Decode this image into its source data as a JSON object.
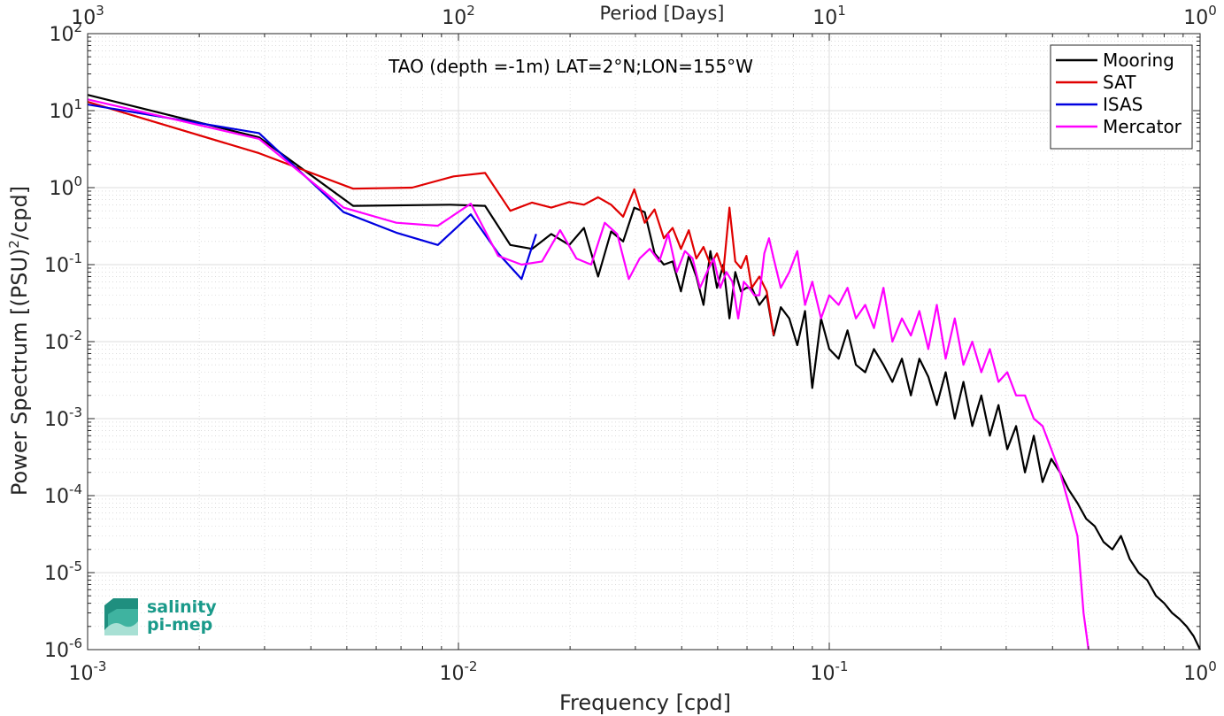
{
  "chart_data": {
    "type": "line",
    "title": "TAO (depth =-1m) LAT=2°N;LON=155°W",
    "xlabel": "Frequency [cpd]",
    "ylabel": "Power Spectrum [(PSU)",
    "ylabel_sup": "2",
    "ylabel_tail": "/cpd]",
    "top_xlabel": "Period [Days]",
    "x_scale": "log",
    "y_scale": "log",
    "xlim": [
      0.001,
      1
    ],
    "ylim": [
      1e-06,
      100
    ],
    "grid": true,
    "legend_position": "top-right",
    "x_ticks": [
      {
        "base": "10",
        "exp": "-3",
        "value": 0.001
      },
      {
        "base": "10",
        "exp": "-2",
        "value": 0.01
      },
      {
        "base": "10",
        "exp": "-1",
        "value": 0.1
      },
      {
        "base": "10",
        "exp": "0",
        "value": 1
      }
    ],
    "top_ticks": [
      {
        "base": "10",
        "exp": "3",
        "value": 0.001
      },
      {
        "base": "10",
        "exp": "2",
        "value": 0.01
      },
      {
        "base": "10",
        "exp": "1",
        "value": 0.1
      },
      {
        "base": "10",
        "exp": "0",
        "value": 1
      }
    ],
    "y_ticks": [
      {
        "base": "10",
        "exp": "2",
        "value": 100
      },
      {
        "base": "10",
        "exp": "1",
        "value": 10
      },
      {
        "base": "10",
        "exp": "0",
        "value": 1
      },
      {
        "base": "10",
        "exp": "-1",
        "value": 0.1
      },
      {
        "base": "10",
        "exp": "-2",
        "value": 0.01
      },
      {
        "base": "10",
        "exp": "-3",
        "value": 0.001
      },
      {
        "base": "10",
        "exp": "-4",
        "value": 0.0001
      },
      {
        "base": "10",
        "exp": "-5",
        "value": 1e-05
      },
      {
        "base": "10",
        "exp": "-6",
        "value": 1e-06
      }
    ],
    "series": [
      {
        "name": "Mooring",
        "color": "#000000",
        "x": [
          0.001,
          0.0029,
          0.0052,
          0.0095,
          0.0118,
          0.0138,
          0.0158,
          0.0178,
          0.0199,
          0.0218,
          0.0238,
          0.0258,
          0.0278,
          0.0298,
          0.0318,
          0.0338,
          0.0358,
          0.0378,
          0.0398,
          0.0418,
          0.0438,
          0.0458,
          0.0478,
          0.0498,
          0.0518,
          0.0538,
          0.0558,
          0.0578,
          0.0598,
          0.0618,
          0.0648,
          0.0678,
          0.0708,
          0.074,
          0.078,
          0.082,
          0.086,
          0.09,
          0.095,
          0.1,
          0.106,
          0.112,
          0.118,
          0.125,
          0.132,
          0.14,
          0.148,
          0.157,
          0.166,
          0.175,
          0.185,
          0.195,
          0.206,
          0.218,
          0.23,
          0.243,
          0.257,
          0.271,
          0.286,
          0.302,
          0.319,
          0.337,
          0.356,
          0.376,
          0.397,
          0.419,
          0.442,
          0.467,
          0.493,
          0.52,
          0.549,
          0.58,
          0.612,
          0.646,
          0.682,
          0.72,
          0.76,
          0.8,
          0.84,
          0.88,
          0.92,
          0.96,
          1.0
        ],
        "y": [
          16,
          4.5,
          0.58,
          0.6,
          0.58,
          0.18,
          0.16,
          0.25,
          0.18,
          0.3,
          0.07,
          0.27,
          0.2,
          0.55,
          0.48,
          0.14,
          0.1,
          0.11,
          0.045,
          0.13,
          0.07,
          0.03,
          0.15,
          0.05,
          0.1,
          0.02,
          0.08,
          0.045,
          0.05,
          0.05,
          0.03,
          0.04,
          0.012,
          0.028,
          0.02,
          0.009,
          0.025,
          0.0025,
          0.02,
          0.008,
          0.006,
          0.014,
          0.005,
          0.004,
          0.008,
          0.005,
          0.003,
          0.006,
          0.002,
          0.006,
          0.0035,
          0.0015,
          0.004,
          0.001,
          0.003,
          0.0008,
          0.002,
          0.0006,
          0.0015,
          0.0004,
          0.0008,
          0.0002,
          0.0006,
          0.00015,
          0.0003,
          0.0002,
          0.00012,
          8e-05,
          5e-05,
          4e-05,
          2.5e-05,
          2e-05,
          3e-05,
          1.5e-05,
          1e-05,
          8e-06,
          5e-06,
          4e-06,
          3e-06,
          2.5e-06,
          2e-06,
          1.5e-06,
          1e-06
        ]
      },
      {
        "name": "SAT",
        "color": "#e00000",
        "x": [
          0.001,
          0.0029,
          0.0052,
          0.0075,
          0.0097,
          0.0118,
          0.0138,
          0.0158,
          0.0178,
          0.0199,
          0.0218,
          0.0238,
          0.0258,
          0.0278,
          0.0298,
          0.0318,
          0.0338,
          0.0358,
          0.0378,
          0.0398,
          0.0418,
          0.0438,
          0.0458,
          0.0478,
          0.0498,
          0.0518,
          0.0538,
          0.0558,
          0.0578,
          0.0598,
          0.0618,
          0.0648,
          0.0678,
          0.0708
        ],
        "y": [
          13,
          2.8,
          0.97,
          1.0,
          1.4,
          1.55,
          0.5,
          0.64,
          0.55,
          0.65,
          0.6,
          0.75,
          0.6,
          0.42,
          0.95,
          0.35,
          0.52,
          0.22,
          0.3,
          0.16,
          0.28,
          0.12,
          0.17,
          0.1,
          0.14,
          0.08,
          0.55,
          0.11,
          0.09,
          0.13,
          0.05,
          0.07,
          0.045,
          0.012
        ]
      },
      {
        "name": "ISAS",
        "color": "#0000e0",
        "x": [
          0.001,
          0.0029,
          0.0049,
          0.0068,
          0.0088,
          0.0108,
          0.0128,
          0.0148,
          0.0162
        ],
        "y": [
          12,
          5.1,
          0.48,
          0.26,
          0.18,
          0.45,
          0.14,
          0.065,
          0.25
        ]
      },
      {
        "name": "Mercator",
        "color": "#ff00ff",
        "x": [
          0.001,
          0.0029,
          0.0049,
          0.0068,
          0.0088,
          0.0108,
          0.0128,
          0.0148,
          0.0168,
          0.0188,
          0.0208,
          0.0228,
          0.0248,
          0.0268,
          0.0288,
          0.0308,
          0.0328,
          0.0348,
          0.0368,
          0.0388,
          0.0408,
          0.0428,
          0.0448,
          0.0468,
          0.0488,
          0.0508,
          0.0528,
          0.0548,
          0.0568,
          0.0588,
          0.0608,
          0.0628,
          0.0648,
          0.0668,
          0.0688,
          0.0708,
          0.074,
          0.078,
          0.082,
          0.086,
          0.09,
          0.095,
          0.1,
          0.106,
          0.112,
          0.118,
          0.125,
          0.132,
          0.14,
          0.148,
          0.157,
          0.166,
          0.175,
          0.185,
          0.195,
          0.206,
          0.218,
          0.23,
          0.243,
          0.257,
          0.271,
          0.286,
          0.302,
          0.319,
          0.337,
          0.356,
          0.376,
          0.397,
          0.419,
          0.442,
          0.467,
          0.485,
          0.5
        ],
        "y": [
          14,
          4.3,
          0.55,
          0.35,
          0.32,
          0.62,
          0.13,
          0.1,
          0.11,
          0.28,
          0.12,
          0.1,
          0.35,
          0.25,
          0.065,
          0.12,
          0.16,
          0.11,
          0.25,
          0.08,
          0.15,
          0.12,
          0.05,
          0.08,
          0.12,
          0.05,
          0.08,
          0.06,
          0.02,
          0.06,
          0.05,
          0.04,
          0.04,
          0.14,
          0.22,
          0.12,
          0.05,
          0.08,
          0.15,
          0.03,
          0.06,
          0.02,
          0.04,
          0.03,
          0.05,
          0.02,
          0.03,
          0.015,
          0.05,
          0.01,
          0.02,
          0.012,
          0.025,
          0.008,
          0.03,
          0.006,
          0.02,
          0.005,
          0.01,
          0.004,
          0.008,
          0.003,
          0.004,
          0.002,
          0.002,
          0.001,
          0.0008,
          0.0004,
          0.0002,
          8e-05,
          3e-05,
          3e-06,
          1e-06
        ]
      }
    ]
  },
  "logo": {
    "line1": "salinity",
    "line2": "pi-mep"
  }
}
